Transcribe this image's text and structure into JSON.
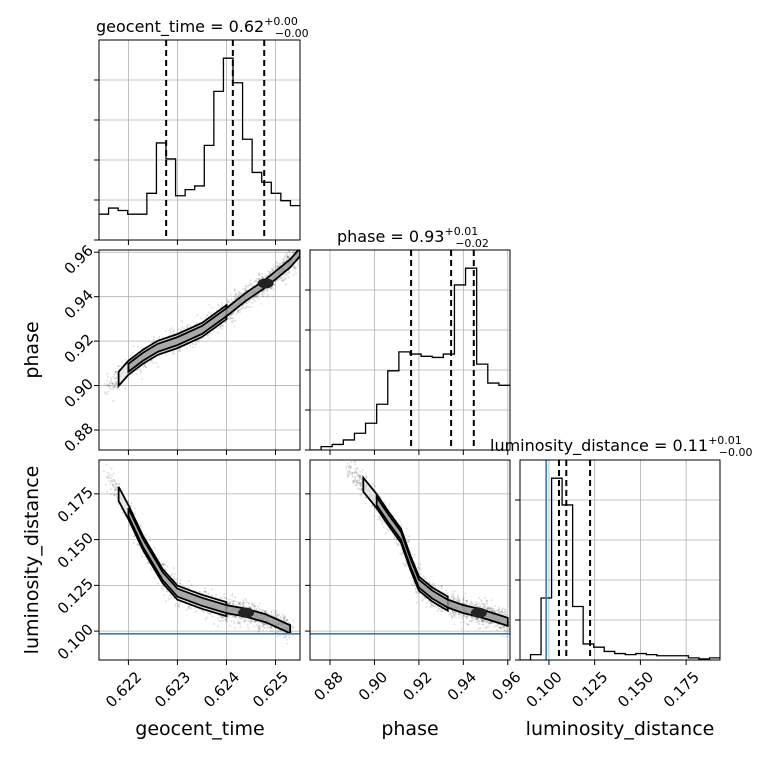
{
  "chart_data": {
    "type": "corner",
    "parameters": [
      {
        "key": "geocent_time",
        "label": "geocent_time",
        "title": {
          "main": "geocent_time = 0.62",
          "sup": "+0.00",
          "sub": "−0.00"
        },
        "range": [
          0.6214,
          0.6255
        ],
        "ticks": [
          0.622,
          0.623,
          0.624,
          0.625
        ],
        "tick_labels": [
          "0.622",
          "0.623",
          "0.624",
          "0.625"
        ],
        "quantiles": [
          0.62277,
          0.62413,
          0.62477
        ],
        "histogram": [
          0.21,
          0.26,
          0.24,
          0.21,
          0.21,
          0.38,
          0.79,
          0.66,
          0.36,
          0.41,
          0.44,
          0.77,
          1.21,
          1.48,
          1.28,
          0.82,
          0.55,
          0.47,
          0.38,
          0.32,
          0.28
        ]
      },
      {
        "key": "phase",
        "label": "phase",
        "title": {
          "main": "phase = 0.93",
          "sup": "+0.01",
          "sub": "−0.02"
        },
        "range": [
          0.871,
          0.961
        ],
        "ticks": [
          0.88,
          0.9,
          0.92,
          0.94,
          0.96
        ],
        "tick_labels": [
          "0.88",
          "0.90",
          "0.92",
          "0.94",
          "0.96"
        ],
        "quantiles": [
          0.9165,
          0.9345,
          0.9447
        ],
        "histogram": [
          0.0,
          0.03,
          0.05,
          0.09,
          0.15,
          0.24,
          0.41,
          0.71,
          0.88,
          0.86,
          0.84,
          0.83,
          0.86,
          1.48,
          1.63,
          0.77,
          0.6,
          0.58
        ]
      },
      {
        "key": "luminosity_distance",
        "label": "luminosity_distance",
        "title": {
          "main": "luminosity_distance = 0.11",
          "sup": "+0.01",
          "sub": "−0.00"
        },
        "range": [
          0.0842,
          0.1935
        ],
        "ticks": [
          0.1,
          0.125,
          0.15,
          0.175
        ],
        "tick_labels": [
          "0.100",
          "0.125",
          "0.150",
          "0.175"
        ],
        "quantiles": [
          0.1055,
          0.1095,
          0.1225
        ],
        "truth": 0.0985,
        "histogram": [
          0.0,
          0.05,
          0.58,
          1.7,
          1.45,
          0.5,
          0.15,
          0.12,
          0.08,
          0.06,
          0.05,
          0.06,
          0.05,
          0.04,
          0.04,
          0.04,
          0.02,
          0.01,
          0.02
        ]
      }
    ],
    "joint_ridges": [
      {
        "x": "geocent_time",
        "y": "phase",
        "x_values": [
          0.6215,
          0.6218,
          0.622,
          0.6223,
          0.6226,
          0.623,
          0.6235,
          0.624,
          0.6244,
          0.6248,
          0.6253,
          0.6255
        ],
        "y_values": [
          0.899,
          0.903,
          0.908,
          0.913,
          0.917,
          0.92,
          0.925,
          0.933,
          0.94,
          0.946,
          0.955,
          0.96
        ]
      },
      {
        "x": "geocent_time",
        "y": "luminosity_distance",
        "x_values": [
          0.6215,
          0.6218,
          0.622,
          0.6223,
          0.6227,
          0.623,
          0.6235,
          0.624,
          0.6244,
          0.6248,
          0.6253
        ],
        "y_values": [
          0.188,
          0.175,
          0.165,
          0.148,
          0.13,
          0.121,
          0.116,
          0.112,
          0.11,
          0.107,
          0.101
        ]
      },
      {
        "x": "phase",
        "y": "luminosity_distance",
        "x_values": [
          0.887,
          0.895,
          0.901,
          0.906,
          0.912,
          0.916,
          0.92,
          0.926,
          0.933,
          0.94,
          0.947,
          0.955,
          0.96
        ],
        "y_values": [
          0.19,
          0.18,
          0.171,
          0.162,
          0.152,
          0.138,
          0.126,
          0.12,
          0.115,
          0.112,
          0.11,
          0.107,
          0.105
        ]
      }
    ]
  }
}
